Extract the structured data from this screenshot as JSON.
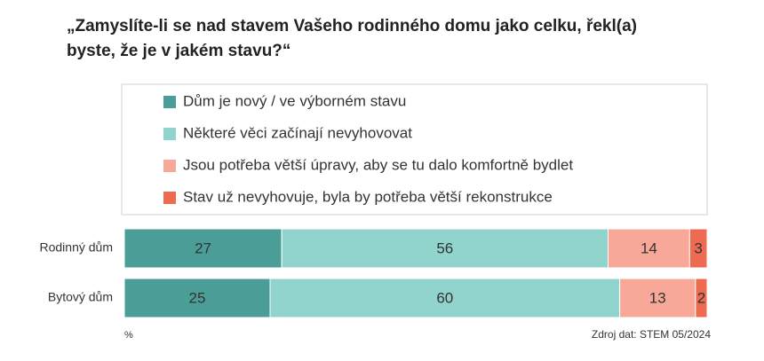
{
  "chart_data": {
    "type": "stacked-bar-horizontal",
    "title": "„Zamyslíte-li se nad stavem Vašeho rodinného domu jako celku, řekl(a) byste, že je v jakém stavu?“",
    "categories": [
      "Rodinný dům",
      "Bytový dům"
    ],
    "series": [
      {
        "name": "Dům je nový / ve výborném stavu",
        "color": "#4b9e97",
        "values": [
          27,
          25
        ]
      },
      {
        "name": "Některé věci začínají nevyhovovat",
        "color": "#90d4cd",
        "values": [
          56,
          60
        ]
      },
      {
        "name": "Jsou potřeba větší úpravy, aby se tu dalo komfortně bydlet",
        "color": "#f7a899",
        "values": [
          14,
          13
        ]
      },
      {
        "name": "Stav už nevyhovuje, byla by potřeba větší rekonstrukce",
        "color": "#ee6a50",
        "values": [
          3,
          2
        ]
      }
    ],
    "xlim": [
      0,
      100
    ],
    "x_label": "%",
    "source": "Zdroj dat: STEM 05/2024"
  }
}
